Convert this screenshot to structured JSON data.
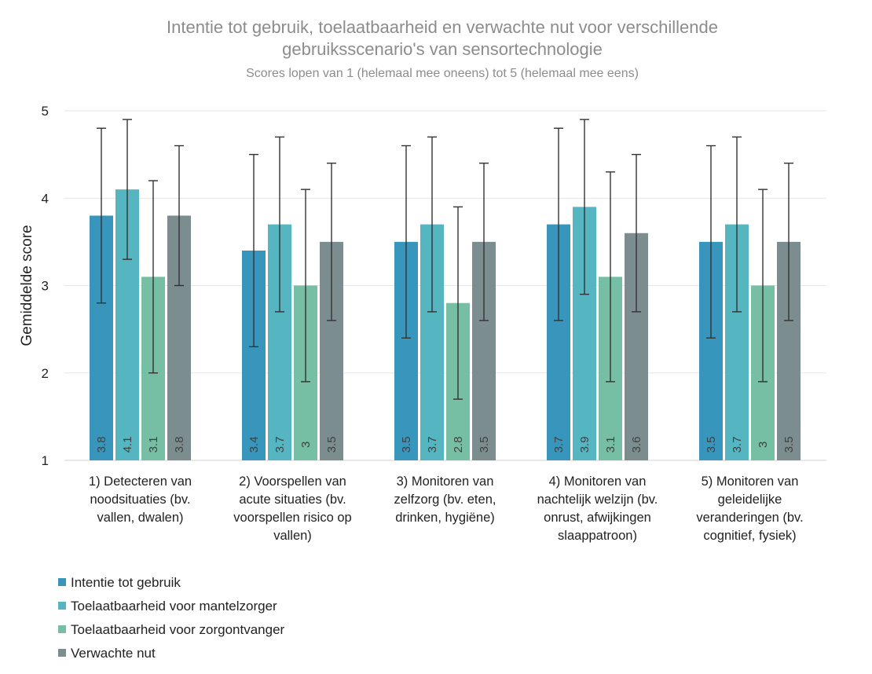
{
  "chart_data": {
    "type": "bar",
    "title_lines": [
      "Intentie tot gebruik, toelaatbaarheid en verwachte nut voor verschillende",
      "gebruiksscenario's  van sensortechnologie"
    ],
    "subtitle": "Scores lopen van 1 (helemaal mee oneens) tot 5 (helemaal mee eens)",
    "ylabel": "Gemiddelde  score",
    "xlabel": "",
    "ylim": [
      1,
      5
    ],
    "yticks": [
      1,
      2,
      3,
      4,
      5
    ],
    "grid": true,
    "legend_position": "bottom-left",
    "categories": [
      [
        "1) Detecteren van",
        "noodsituaties (bv.",
        "vallen, dwalen)"
      ],
      [
        "2) Voorspellen van",
        "acute situaties (bv.",
        "voorspellen risico op",
        "vallen)"
      ],
      [
        "3) Monitoren van",
        "zelfzorg (bv. eten,",
        "drinken, hygiëne)"
      ],
      [
        "4) Monitoren van",
        "nachtelijk welzijn (bv.",
        "onrust, afwijkingen",
        "slaappatroon)"
      ],
      [
        "5) Monitoren van",
        "geleidelijke",
        "veranderingen (bv.",
        "cognitief, fysiek)"
      ]
    ],
    "series": [
      {
        "name": "Intentie tot gebruik",
        "color": "#3896bd",
        "values": [
          3.8,
          3.4,
          3.5,
          3.7,
          3.5
        ],
        "labels": [
          "3.8",
          "3.4",
          "3.5",
          "3.7",
          "3.5"
        ],
        "err_low": [
          2.8,
          2.3,
          2.4,
          2.6,
          2.4
        ],
        "err_high": [
          4.8,
          4.5,
          4.6,
          4.8,
          4.6
        ]
      },
      {
        "name": "Toelaatbaarheid voor mantelzorger",
        "color": "#55b6c2",
        "values": [
          4.1,
          3.7,
          3.7,
          3.9,
          3.7
        ],
        "labels": [
          "4.1",
          "3.7",
          "3.7",
          "3.9",
          "3.7"
        ],
        "err_low": [
          3.3,
          2.7,
          2.7,
          2.9,
          2.7
        ],
        "err_high": [
          4.9,
          4.7,
          4.7,
          4.9,
          4.7
        ]
      },
      {
        "name": "Toelaatbaarheid voor zorgontvanger",
        "color": "#76bfa4",
        "values": [
          3.1,
          3.0,
          2.8,
          3.1,
          3.0
        ],
        "labels": [
          "3.1",
          "3",
          "2.8",
          "3.1",
          "3"
        ],
        "err_low": [
          2.0,
          1.9,
          1.7,
          1.9,
          1.9
        ],
        "err_high": [
          4.2,
          4.1,
          3.9,
          4.3,
          4.1
        ]
      },
      {
        "name": "Verwachte nut",
        "color": "#7b8d8e",
        "values": [
          3.8,
          3.5,
          3.5,
          3.6,
          3.5
        ],
        "labels": [
          "3.8",
          "3.5",
          "3.5",
          "3.6",
          "3.5"
        ],
        "err_low": [
          3.0,
          2.6,
          2.6,
          2.7,
          2.6
        ],
        "err_high": [
          4.6,
          4.4,
          4.4,
          4.5,
          4.4
        ]
      }
    ]
  }
}
